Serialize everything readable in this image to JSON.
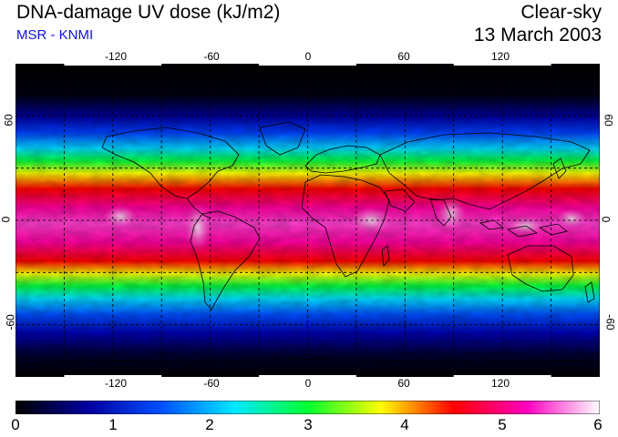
{
  "header": {
    "title": "DNA-damage UV dose (kJ/m2)",
    "subtitle": "MSR - KNMI",
    "condition": "Clear-sky",
    "date": "13 March 2003"
  },
  "map": {
    "projection": "equirectangular",
    "lon_range": [
      -180,
      180
    ],
    "lat_range": [
      -90,
      90
    ],
    "lon_ticks": [
      "-120",
      "-60",
      "0",
      "60",
      "120"
    ],
    "lat_ticks": [
      "60",
      "0",
      "-60"
    ],
    "gridlines": "dashed, every 30 degrees",
    "unit": "kJ/m2"
  },
  "colorbar": {
    "min": 0,
    "max": 6,
    "labels": [
      "0",
      "1",
      "2",
      "3",
      "4",
      "5",
      "6"
    ],
    "colors": [
      "#000000",
      "#0000a0",
      "#0050ff",
      "#00e8ff",
      "#00ff30",
      "#ffff00",
      "#ff0000",
      "#ff00c0",
      "#ffffff"
    ]
  }
}
